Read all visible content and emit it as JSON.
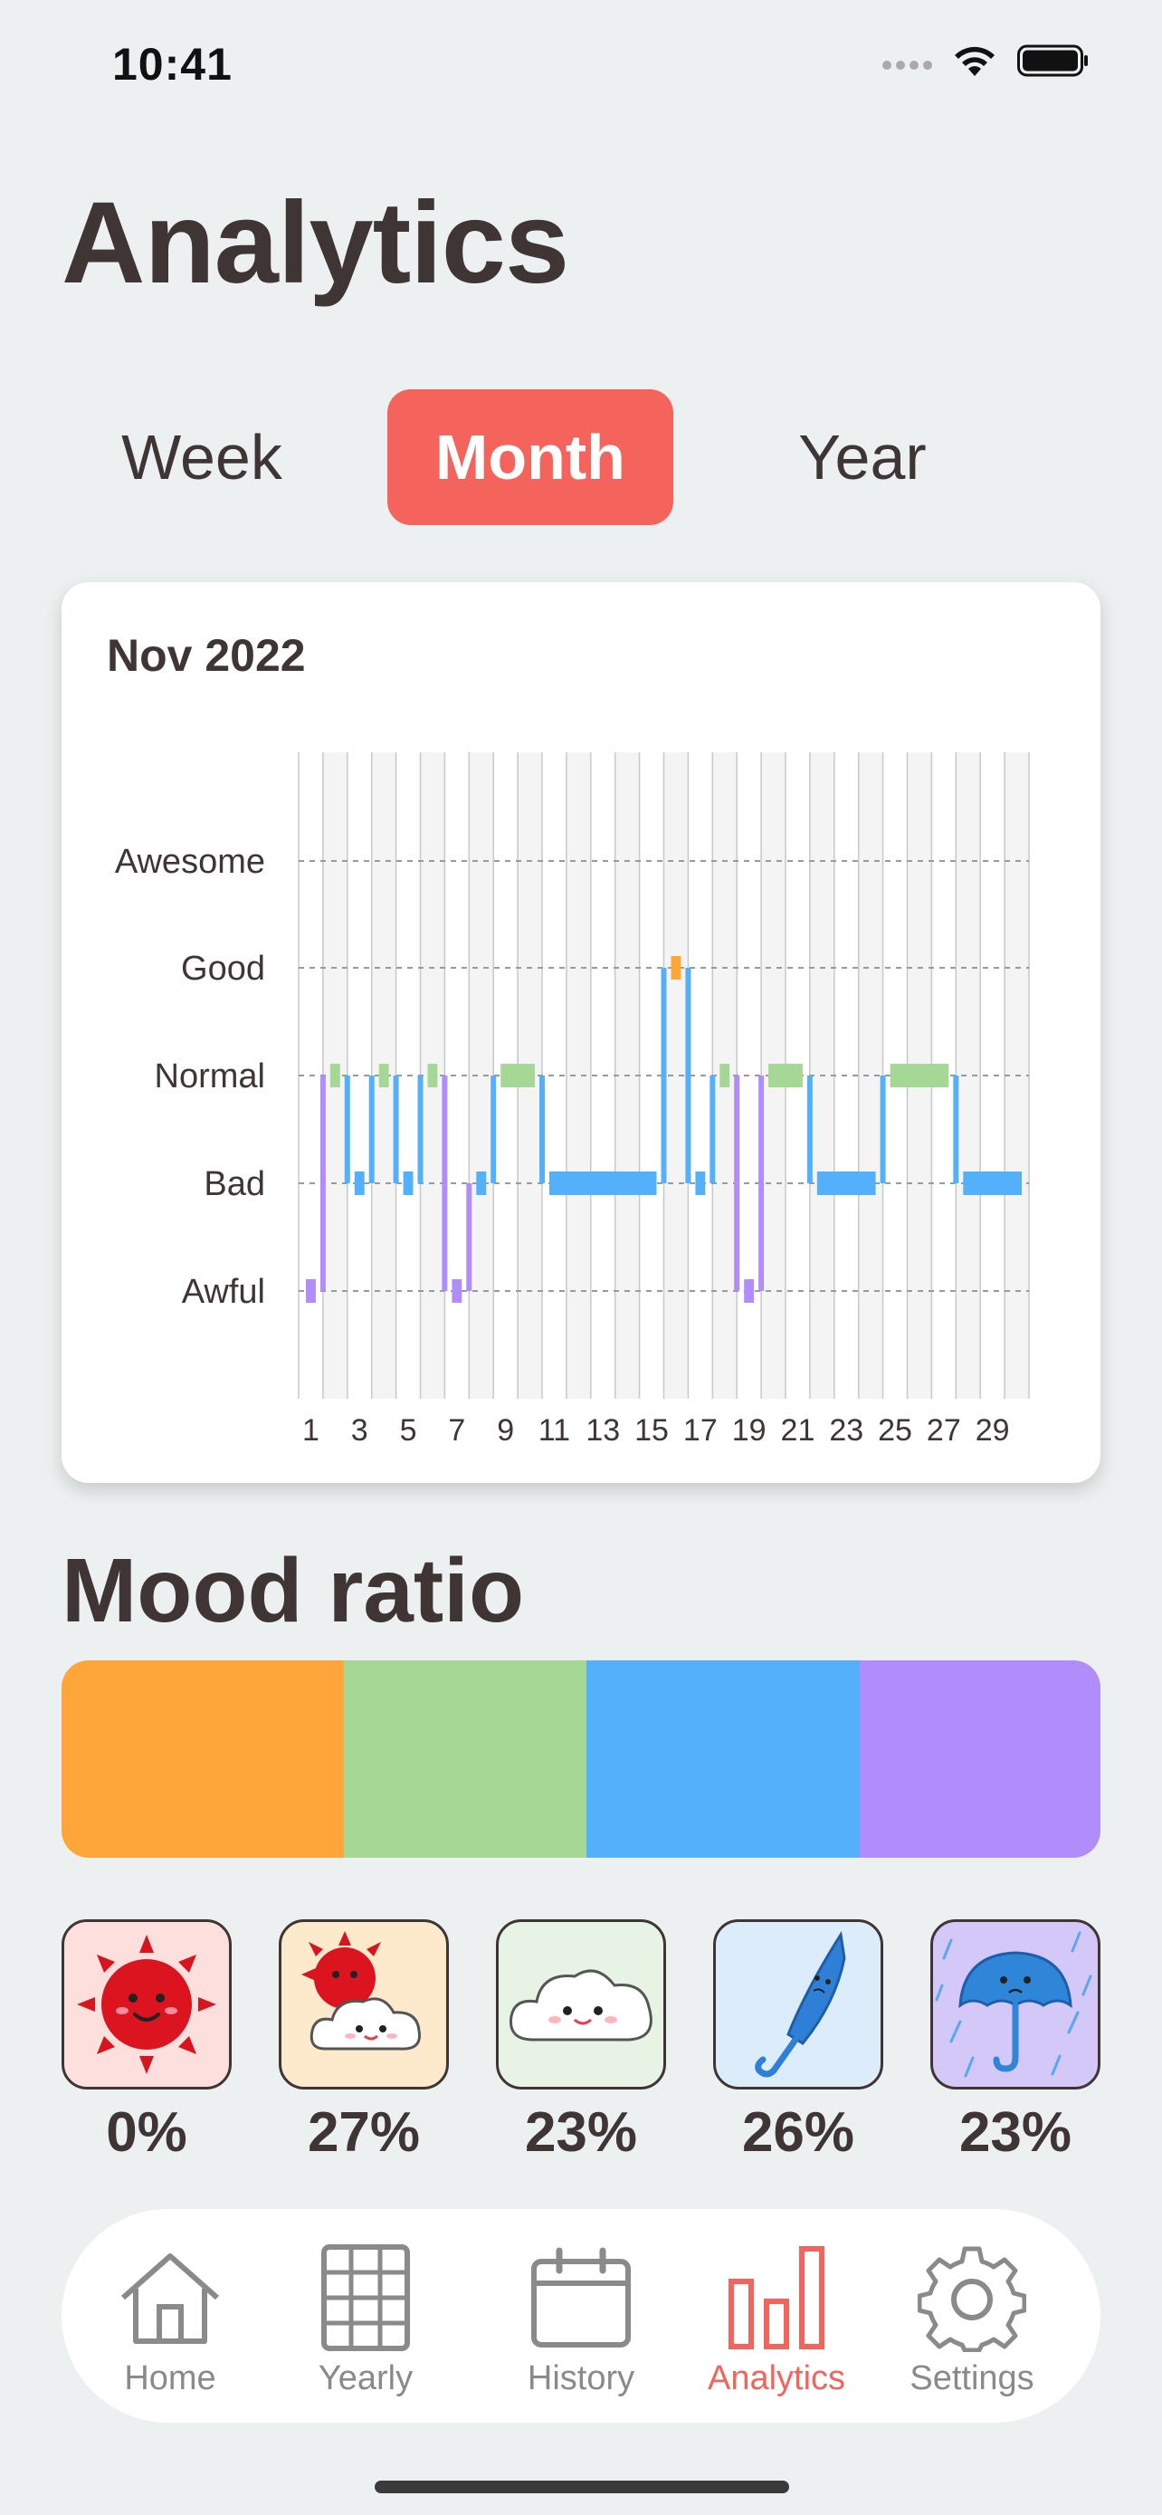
{
  "status_bar": {
    "time": "10:41"
  },
  "page": {
    "title": "Analytics"
  },
  "tabs": [
    {
      "label": "Week",
      "active": false
    },
    {
      "label": "Month",
      "active": true
    },
    {
      "label": "Year",
      "active": false
    }
  ],
  "colors": {
    "accent": "#f5645c",
    "awesome": "#ffa63a",
    "good": "#ffa63a",
    "normal": "#a5d795",
    "bad": "#55b0fc",
    "awful": "#b18cfb"
  },
  "chart_data": {
    "type": "line",
    "title": "Nov 2022",
    "y_categories": [
      "Awful",
      "Bad",
      "Normal",
      "Good",
      "Awesome"
    ],
    "x_ticks": [
      1,
      3,
      5,
      7,
      9,
      11,
      13,
      15,
      17,
      19,
      21,
      23,
      25,
      27,
      29
    ],
    "x": [
      1,
      2,
      3,
      4,
      5,
      6,
      7,
      8,
      9,
      10,
      11,
      12,
      13,
      14,
      15,
      16,
      17,
      18,
      19,
      20,
      21,
      22,
      23,
      24,
      25,
      26,
      27,
      28,
      29,
      30
    ],
    "series": [
      {
        "values": [
          "Awful",
          "Normal",
          "Bad",
          "Normal",
          "Bad",
          "Normal",
          "Awful",
          "Bad",
          "Normal",
          "Normal",
          "Bad",
          "Bad",
          "Bad",
          "Bad",
          "Bad",
          "Good",
          "Bad",
          "Normal",
          "Awful",
          "Normal",
          "Normal",
          "Bad",
          "Bad",
          "Bad",
          "Normal",
          "Normal",
          "Normal",
          "Bad",
          "Bad",
          "Bad"
        ]
      }
    ],
    "grid": true,
    "legend": "none"
  },
  "mood_ratio": {
    "title": "Mood ratio",
    "segments": [
      {
        "mood": "Good",
        "fraction": 0.272,
        "color": "#ffa63a"
      },
      {
        "mood": "Normal",
        "fraction": 0.233,
        "color": "#a5d795"
      },
      {
        "mood": "Bad",
        "fraction": 0.263,
        "color": "#55b0fc"
      },
      {
        "mood": "Awful",
        "fraction": 0.232,
        "color": "#b18cfb"
      }
    ],
    "items": [
      {
        "icon": "sun-icon",
        "percent": "0%"
      },
      {
        "icon": "sun-cloud-icon",
        "percent": "27%"
      },
      {
        "icon": "cloud-icon",
        "percent": "23%"
      },
      {
        "icon": "closed-umbrella-icon",
        "percent": "26%"
      },
      {
        "icon": "rain-umbrella-icon",
        "percent": "23%"
      }
    ]
  },
  "nav": [
    {
      "label": "Home",
      "icon": "home-icon",
      "active": false
    },
    {
      "label": "Yearly",
      "icon": "grid-icon",
      "active": false
    },
    {
      "label": "History",
      "icon": "calendar-icon",
      "active": false
    },
    {
      "label": "Analytics",
      "icon": "bar-chart-icon",
      "active": true
    },
    {
      "label": "Settings",
      "icon": "gear-icon",
      "active": false
    }
  ]
}
